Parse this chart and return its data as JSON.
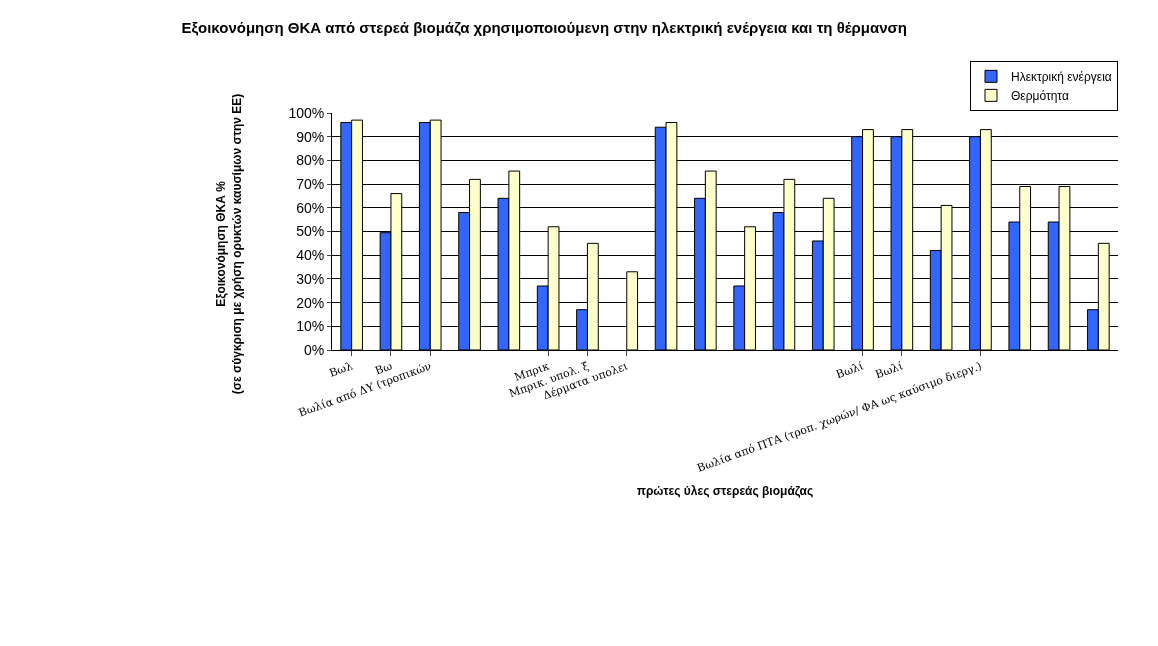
{
  "chart_data": {
    "type": "bar",
    "title": "Εξοικονόμηση ΘΚΑ από στερεά βιομάζα χρησιμοποιούμενη στην ηλεκτρική ενέργεια και τη θέρμανση",
    "xlabel": "πρώτες ύλες στερεάς βιομάζας",
    "ylabel": "Εξοικονόμηση ΘΚΑ %\n(σε σύγκριση με χρήση ορυκτών καυσίμων στην ΕΕ)",
    "categories": [
      "Βωλ",
      "Βω",
      "Βωλία από ΔΥ (τροπικών",
      null,
      null,
      "Μπρικ",
      "Μπρικ. υπολ. ξ",
      "Δέρματα υπολει",
      null,
      null,
      null,
      null,
      null,
      "Βωλί",
      "Βωλί",
      null,
      "Βωλία από ΠΤΑ (τροπ. χωρών/ ΦΑ ως καύσιμο διεργ.)",
      null,
      null,
      null
    ],
    "series": [
      {
        "name": "Ηλεκτρική ενέργεια",
        "color": "#3366ff",
        "values": [
          96,
          49.5,
          96,
          58,
          64,
          27,
          17,
          null,
          94,
          64,
          27,
          58,
          46,
          90,
          90,
          42,
          90,
          54,
          54,
          17
        ]
      },
      {
        "name": "Θερμότητα",
        "color": "#ffffcc",
        "values": [
          97,
          66,
          97,
          72,
          75.5,
          52,
          45,
          33,
          96,
          75.5,
          52,
          72,
          64,
          93,
          93,
          61,
          93,
          69,
          69,
          45
        ]
      }
    ],
    "ylim": [
      0,
      100
    ],
    "yticks": [
      {
        "value": 0,
        "label": "0%"
      },
      {
        "value": 10,
        "label": "10%"
      },
      {
        "value": 20,
        "label": "20%"
      },
      {
        "value": 30,
        "label": "30%"
      },
      {
        "value": 40,
        "label": "40%"
      },
      {
        "value": 50,
        "label": "50%"
      },
      {
        "value": 60,
        "label": "60%"
      },
      {
        "value": 70,
        "label": "70%"
      },
      {
        "value": 80,
        "label": "80%"
      },
      {
        "value": 90,
        "label": "90%"
      },
      {
        "value": 100,
        "label": "100%"
      }
    ],
    "grid": "y",
    "legend": "top right"
  }
}
